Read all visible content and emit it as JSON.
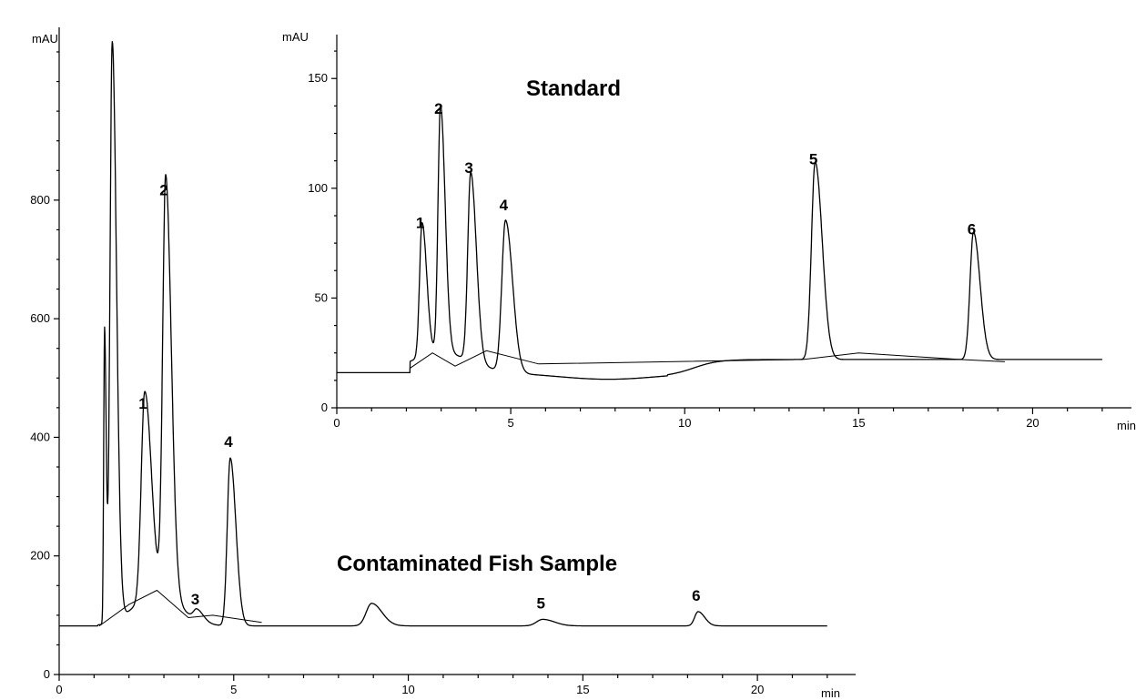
{
  "chart_data": [
    {
      "type": "line",
      "title": "Contaminated Fish Sample",
      "xlabel": "min",
      "ylabel": "mAU",
      "xlim": [
        0,
        22.5
      ],
      "ylim": [
        0,
        1050
      ],
      "x_ticks": [
        0,
        5,
        10,
        15,
        20
      ],
      "y_ticks": [
        0,
        200,
        400,
        600,
        800
      ],
      "baseline": 82,
      "trace_end": 22,
      "peaks": [
        {
          "label": "",
          "rt": 1.3,
          "height": 580,
          "width": 0.035
        },
        {
          "label": "",
          "rt": 1.52,
          "height": 1060,
          "width": 0.09
        },
        {
          "label": "1",
          "rt": 2.45,
          "height": 430,
          "width": 0.14
        },
        {
          "label": "2",
          "rt": 3.05,
          "height": 790,
          "width": 0.12
        },
        {
          "label": "3",
          "rt": 3.95,
          "height": 100,
          "width": 0.14
        },
        {
          "label": "4",
          "rt": 4.9,
          "height": 365,
          "width": 0.12
        },
        {
          "label": "",
          "rt": 8.95,
          "height": 120,
          "width": 0.22
        },
        {
          "label": "5",
          "rt": 13.85,
          "height": 93,
          "width": 0.25
        },
        {
          "label": "6",
          "rt": 18.3,
          "height": 106,
          "width": 0.14
        }
      ]
    },
    {
      "type": "line",
      "title": "Standard",
      "xlabel": "min",
      "ylabel": "mAU",
      "xlim": [
        0,
        22.5
      ],
      "ylim": [
        0,
        170
      ],
      "x_ticks": [
        0,
        5,
        10,
        15,
        20
      ],
      "y_ticks": [
        0,
        50,
        100,
        150
      ],
      "baseline": 16,
      "trace_end": 22,
      "peaks": [
        {
          "label": "1",
          "rt": 2.45,
          "height": 77,
          "width": 0.1
        },
        {
          "label": "2",
          "rt": 2.98,
          "height": 129,
          "width": 0.1
        },
        {
          "label": "3",
          "rt": 3.85,
          "height": 102,
          "width": 0.12
        },
        {
          "label": "4",
          "rt": 4.85,
          "height": 85,
          "width": 0.15
        },
        {
          "label": "5",
          "rt": 13.75,
          "height": 106,
          "width": 0.15
        },
        {
          "label": "6",
          "rt": 18.3,
          "height": 74,
          "width": 0.14
        }
      ]
    }
  ]
}
